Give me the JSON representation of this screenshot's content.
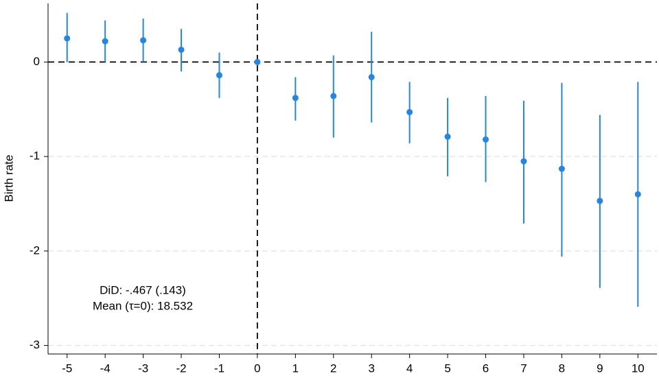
{
  "chart_data": {
    "type": "errorbar",
    "y_label": "Birth rate",
    "annotations": [
      "DiD: -.467 (.143)",
      "Mean (τ=0): 18.532"
    ],
    "x": [
      -5,
      -4,
      -3,
      -2,
      -1,
      0,
      1,
      2,
      3,
      4,
      5,
      6,
      7,
      8,
      9,
      10
    ],
    "series": [
      {
        "color": "#2385e8",
        "values": [
          0.25,
          0.22,
          0.23,
          0.13,
          -0.14,
          0,
          -0.38,
          -0.36,
          -0.16,
          -0.53,
          -0.79,
          -0.82,
          -1.05,
          -1.13,
          -1.47,
          -1.4
        ],
        "lower": [
          0.0,
          0.0,
          0.0,
          -0.1,
          -0.38,
          null,
          -0.62,
          -0.8,
          -0.64,
          -0.86,
          -1.21,
          -1.27,
          -1.71,
          -2.06,
          -2.39,
          -2.59
        ],
        "upper": [
          0.52,
          0.44,
          0.46,
          0.35,
          0.1,
          null,
          -0.16,
          0.07,
          0.32,
          -0.21,
          -0.38,
          -0.36,
          -0.41,
          -0.22,
          -0.56,
          -0.21
        ]
      }
    ],
    "xlim": [
      -5.5,
      10.5
    ],
    "ylim": [
      -3.09,
      0.62
    ],
    "xticks": [
      -5,
      -4,
      -3,
      -2,
      -1,
      0,
      1,
      2,
      3,
      4,
      5,
      6,
      7,
      8,
      9,
      10
    ],
    "yticks": [
      -3,
      -2,
      -1,
      0
    ],
    "grid": true,
    "reference_lines": {
      "x": 0,
      "y": 0
    }
  }
}
